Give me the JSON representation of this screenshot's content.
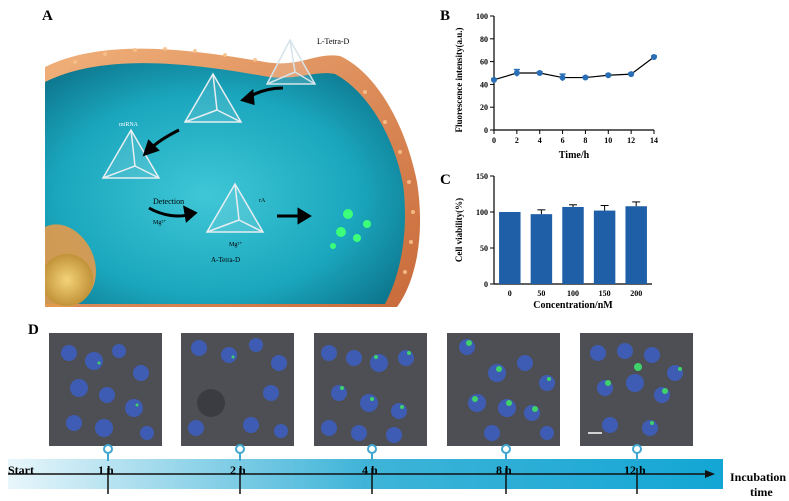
{
  "panels": {
    "a": "A",
    "b": "B",
    "c": "C",
    "d": "D"
  },
  "schematic": {
    "l_tetra_d": "L-Tetra-D",
    "mirna": "miRNA",
    "detection": "Detection",
    "mg": "Mg²⁺",
    "ra": "rA",
    "mg_inner": "Mg²⁺",
    "a_tetra_d": "A-Tetra-D"
  },
  "timeline": {
    "start": "Start",
    "labels": [
      "1 h",
      "2 h",
      "4 h",
      "8 h",
      "12 h"
    ],
    "end_label_1": "Incubation",
    "end_label_2": "time"
  },
  "chart_data": [
    {
      "panel": "B",
      "type": "line",
      "xlabel": "Time/h",
      "ylabel": "Fluorescence intensity(a.u.)",
      "x": [
        0,
        2,
        4,
        6,
        8,
        10,
        12,
        14
      ],
      "y": [
        44,
        50,
        50,
        46,
        46,
        48,
        49,
        64
      ],
      "err": [
        1,
        3,
        1,
        3,
        1,
        1,
        1,
        1
      ],
      "xlim": [
        0,
        14
      ],
      "ylim": [
        0,
        100
      ],
      "xticks": [
        0,
        2,
        4,
        6,
        8,
        10,
        12,
        14
      ],
      "yticks": [
        0,
        20,
        40,
        60,
        80,
        100
      ],
      "color": "#2a6fb5"
    },
    {
      "panel": "C",
      "type": "bar",
      "xlabel": "Concentration/nM",
      "ylabel": "Cell viability(%)",
      "categories": [
        "0",
        "50",
        "100",
        "150",
        "200"
      ],
      "values": [
        100,
        97,
        107,
        102,
        108
      ],
      "err": [
        0,
        6,
        3,
        7,
        6
      ],
      "ylim": [
        0,
        150
      ],
      "yticks": [
        0,
        50,
        100,
        150
      ],
      "color": "#1f5fa8"
    }
  ]
}
